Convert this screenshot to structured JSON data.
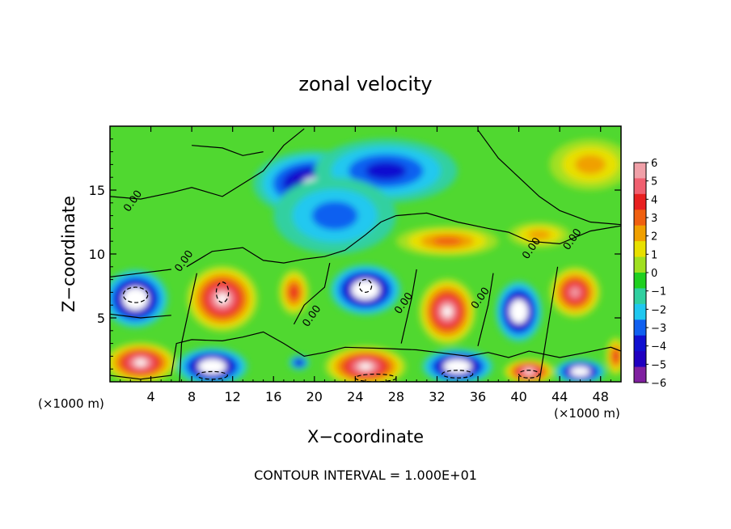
{
  "chart_data": {
    "type": "heatmap",
    "title": "zonal velocity",
    "xlabel": "X−coordinate",
    "ylabel": "Z−coordinate",
    "x_unit_left": "(×1000 m)",
    "x_unit_right": "(×1000 m)",
    "footer": "CONTOUR INTERVAL = 1.000E+01",
    "xlim": [
      0,
      50
    ],
    "ylim": [
      0,
      20
    ],
    "x_ticks": [
      4,
      8,
      12,
      16,
      20,
      24,
      28,
      32,
      36,
      40,
      44,
      48
    ],
    "x_tick_labels": [
      "4",
      "8",
      "12",
      "16",
      "20",
      "24",
      "28",
      "32",
      "36",
      "40",
      "44",
      "48"
    ],
    "y_ticks": [
      5,
      10,
      15
    ],
    "y_tick_labels": [
      "5",
      "10",
      "15"
    ],
    "colorbar": {
      "values": [
        6,
        5,
        4,
        3,
        2,
        1,
        0,
        -1,
        -2,
        -3,
        -4,
        -5,
        -6
      ],
      "labels": [
        "6",
        "5",
        "4",
        "3",
        "2",
        "1",
        "0",
        "−1",
        "−2",
        "−3",
        "−4",
        "−5",
        "−6"
      ],
      "colors": [
        "#f0a0a8",
        "#f06070",
        "#e82020",
        "#f06010",
        "#f0a000",
        "#e8e000",
        "#a0e020",
        "#20d020",
        "#30d0a0",
        "#20c8f0",
        "#1060f0",
        "#1010d0",
        "#2000c0",
        "#8020a0"
      ]
    },
    "regions": [
      {
        "kind": "neg",
        "x": 20,
        "y": 15.5,
        "rx": 6,
        "ry": 2.6,
        "v": -4.5
      },
      {
        "kind": "neg",
        "x": 27,
        "y": 16.5,
        "rx": 7,
        "ry": 2.5,
        "v": -3
      },
      {
        "kind": "neg",
        "x": 22,
        "y": 13,
        "rx": 6,
        "ry": 3,
        "v": -2
      },
      {
        "kind": "pos",
        "x": 33,
        "y": 11,
        "rx": 5,
        "ry": 1.2,
        "v": 2.5
      },
      {
        "kind": "pos",
        "x": 42,
        "y": 11.5,
        "rx": 3,
        "ry": 1,
        "v": 1.5
      },
      {
        "kind": "pos",
        "x": 47,
        "y": 17,
        "rx": 4,
        "ry": 2,
        "v": 1.5
      },
      {
        "kind": "neg",
        "x": 2.5,
        "y": 6.5,
        "rx": 3.2,
        "ry": 2.3,
        "v": -7
      },
      {
        "kind": "pos",
        "x": 11,
        "y": 6.5,
        "rx": 3.5,
        "ry": 2.6,
        "v": 7
      },
      {
        "kind": "pos",
        "x": 18,
        "y": 7,
        "rx": 1.5,
        "ry": 1.8,
        "v": 4
      },
      {
        "kind": "neg",
        "x": 25,
        "y": 7.2,
        "rx": 3.5,
        "ry": 2,
        "v": -7
      },
      {
        "kind": "pos",
        "x": 33,
        "y": 5.5,
        "rx": 2.8,
        "ry": 2.6,
        "v": 7
      },
      {
        "kind": "neg",
        "x": 40,
        "y": 5.5,
        "rx": 2.3,
        "ry": 2.4,
        "v": -7
      },
      {
        "kind": "pos",
        "x": 45.5,
        "y": 7,
        "rx": 2.5,
        "ry": 2,
        "v": 6
      },
      {
        "kind": "pos",
        "x": 3,
        "y": 1.5,
        "rx": 3.5,
        "ry": 1.6,
        "v": 7
      },
      {
        "kind": "neg",
        "x": 10,
        "y": 1.2,
        "rx": 3.5,
        "ry": 1.5,
        "v": -7
      },
      {
        "kind": "pos",
        "x": 25,
        "y": 1.2,
        "rx": 4,
        "ry": 1.6,
        "v": 7
      },
      {
        "kind": "neg",
        "x": 34,
        "y": 1.2,
        "rx": 3.5,
        "ry": 1.4,
        "v": -7
      },
      {
        "kind": "pos",
        "x": 41,
        "y": 0.8,
        "rx": 2.5,
        "ry": 1,
        "v": 7
      },
      {
        "kind": "neg",
        "x": 46,
        "y": 0.8,
        "rx": 2.5,
        "ry": 1,
        "v": -7
      },
      {
        "kind": "neg",
        "x": 18.5,
        "y": 1.5,
        "rx": 1,
        "ry": 0.6,
        "v": -4
      },
      {
        "kind": "pos",
        "x": 49.5,
        "y": 2,
        "rx": 1,
        "ry": 1.5,
        "v": 4
      }
    ],
    "contour_labels": [
      {
        "text": "0.00",
        "x": 2.5,
        "y": 14
      },
      {
        "text": "0.00",
        "x": 7.5,
        "y": 9.3
      },
      {
        "text": "0.00",
        "x": 20,
        "y": 5
      },
      {
        "text": "0.00",
        "x": 29,
        "y": 6
      },
      {
        "text": "0.00",
        "x": 36.5,
        "y": 6.4
      },
      {
        "text": "0.00",
        "x": 41.5,
        "y": 10.3
      },
      {
        "text": "0.00",
        "x": 45.5,
        "y": 11
      }
    ]
  }
}
